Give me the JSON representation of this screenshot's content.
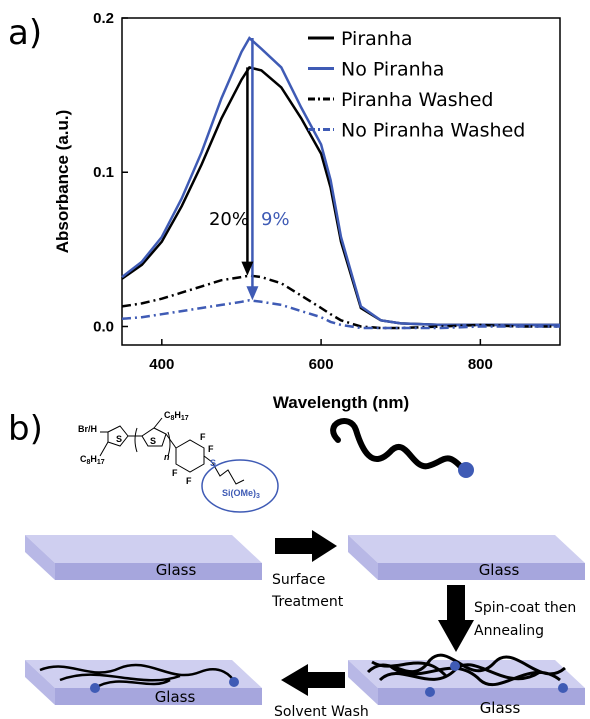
{
  "panel_a_label": "a)",
  "chart_data": {
    "type": "line",
    "x_label": "Wavelength (nm)",
    "y_label": "Absorbance (a.u.)",
    "x": [
      350,
      375,
      400,
      425,
      450,
      475,
      500,
      510,
      525,
      550,
      575,
      600,
      612,
      625,
      650,
      675,
      700,
      750,
      800,
      850,
      900
    ],
    "series": [
      {
        "name": "Piranha",
        "color": "#000000",
        "style": "solid",
        "values": [
          0.031,
          0.04,
          0.055,
          0.078,
          0.105,
          0.135,
          0.16,
          0.168,
          0.166,
          0.155,
          0.135,
          0.112,
          0.09,
          0.055,
          0.012,
          0.004,
          0.002,
          0.001,
          0.001,
          0.001,
          0.001
        ]
      },
      {
        "name": "No Piranha",
        "color": "#3f5bb5",
        "style": "solid",
        "values": [
          0.032,
          0.042,
          0.058,
          0.083,
          0.113,
          0.148,
          0.178,
          0.187,
          0.18,
          0.168,
          0.142,
          0.118,
          0.095,
          0.058,
          0.013,
          0.004,
          0.002,
          0.001,
          0.001,
          0.001,
          0.001
        ]
      },
      {
        "name": "Piranha Washed",
        "color": "#000000",
        "style": "dashdot",
        "values": [
          0.013,
          0.015,
          0.018,
          0.022,
          0.026,
          0.03,
          0.032,
          0.033,
          0.032,
          0.028,
          0.02,
          0.012,
          0.008,
          0.004,
          0.0,
          -0.001,
          -0.001,
          0.0,
          0.001,
          0.0,
          0.0
        ]
      },
      {
        "name": "No Piranha Washed",
        "color": "#3f5bb5",
        "style": "dashdot",
        "values": [
          0.005,
          0.006,
          0.008,
          0.01,
          0.012,
          0.014,
          0.016,
          0.017,
          0.016,
          0.014,
          0.01,
          0.006,
          0.003,
          0.001,
          -0.001,
          -0.001,
          -0.001,
          -0.001,
          0.0,
          0.0,
          0.0
        ]
      }
    ],
    "annotations": [
      {
        "text": "20%",
        "color": "#000000"
      },
      {
        "text": "9%",
        "color": "#3f5bb5"
      }
    ],
    "xlim": [
      350,
      900
    ],
    "xticks": [
      400,
      600,
      800
    ],
    "ylim": [
      -0.012,
      0.2
    ],
    "yticks": [
      {
        "value": 0,
        "label": "0.0"
      },
      {
        "value": 0.1,
        "label": "0.1"
      },
      {
        "value": 0.2,
        "label": "0.2"
      }
    ],
    "legend": "upper right",
    "grid": false
  },
  "diagram": {
    "label": "b)",
    "structure": {
      "end_group": "Br/H",
      "sulfur": [
        "S",
        "S",
        "S"
      ],
      "side_chain": [
        "C8H17",
        "C8H17"
      ],
      "repeat": "n",
      "fluorine": [
        "F",
        "F",
        "F",
        "F"
      ],
      "anchor": "Si(OMe)3"
    },
    "glass": [
      "Glass",
      "Glass",
      "Glass",
      "Glass"
    ],
    "steps": [
      [
        "Surface",
        "Treatment"
      ],
      [
        "Spin-coat then",
        "Annealing"
      ],
      [
        "Solvent Wash"
      ]
    ]
  }
}
